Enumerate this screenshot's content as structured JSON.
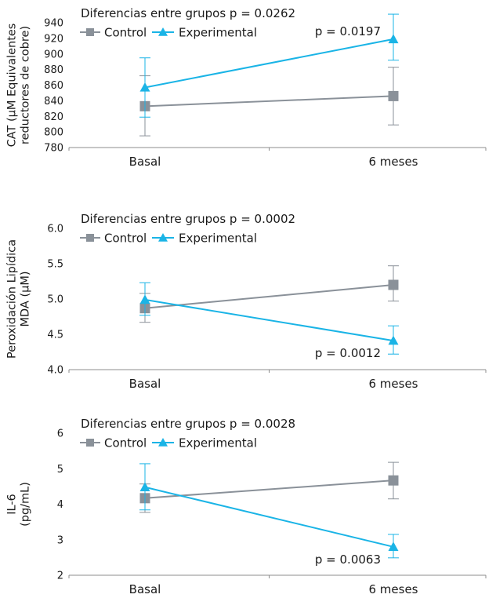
{
  "colors": {
    "control": "#8a9199",
    "experimental": "#1ab4e6",
    "axis": "#8c8c8c"
  },
  "chart_data": [
    {
      "type": "line",
      "annotation": "Diferencias entre grupos p = 0.0262",
      "ylabel_lines": [
        "CAT (µM Equivalentes",
        "reductores de cobre)"
      ],
      "categories": [
        "Basal",
        "6 meses"
      ],
      "ylim": [
        780,
        940
      ],
      "yticks": [
        "780",
        "800",
        "820",
        "840",
        "860",
        "880",
        "900",
        "920",
        "940"
      ],
      "legend": [
        "Control",
        "Experimental"
      ],
      "series": [
        {
          "name": "Control",
          "values": [
            833,
            846
          ],
          "err_low": [
            795,
            809
          ],
          "err_high": [
            872,
            883
          ]
        },
        {
          "name": "Experimental",
          "values": [
            857,
            919
          ],
          "err_low": [
            819,
            892
          ],
          "err_high": [
            895,
            951
          ]
        }
      ],
      "point_label": {
        "text": "p = 0.0197",
        "series": 1,
        "index": 1,
        "position": "left"
      }
    },
    {
      "type": "line",
      "annotation": "Diferencias entre grupos p = 0.0002",
      "ylabel_lines": [
        "Peroxidación Lipídica",
        "MDA (µM)"
      ],
      "categories": [
        "Basal",
        "6 meses"
      ],
      "ylim": [
        4.0,
        6.0
      ],
      "yticks": [
        "4.0",
        "4.5",
        "5.0",
        "5.5",
        "6.0"
      ],
      "legend": [
        "Control",
        "Experimental"
      ],
      "series": [
        {
          "name": "Control",
          "values": [
            4.87,
            5.2
          ],
          "err_low": [
            4.67,
            4.97
          ],
          "err_high": [
            5.08,
            5.47
          ]
        },
        {
          "name": "Experimental",
          "values": [
            4.99,
            4.41
          ],
          "err_low": [
            4.77,
            4.22
          ],
          "err_high": [
            5.23,
            4.62
          ]
        }
      ],
      "point_label": {
        "text": "p = 0.0012",
        "series": 1,
        "index": 1,
        "position": "below-left"
      }
    },
    {
      "type": "line",
      "annotation": "Diferencias entre grupos p = 0.0028",
      "ylabel_lines": [
        "IL-6",
        "(pg/mL)"
      ],
      "categories": [
        "Basal",
        "6 meses"
      ],
      "ylim": [
        2,
        6
      ],
      "yticks": [
        "2",
        "3",
        "4",
        "5",
        "6"
      ],
      "legend": [
        "Control",
        "Experimental"
      ],
      "series": [
        {
          "name": "Control",
          "values": [
            4.17,
            4.67
          ],
          "err_low": [
            3.77,
            4.15
          ],
          "err_high": [
            4.57,
            5.18
          ]
        },
        {
          "name": "Experimental",
          "values": [
            4.48,
            2.8
          ],
          "err_low": [
            3.84,
            2.49
          ],
          "err_high": [
            5.14,
            3.15
          ]
        }
      ],
      "point_label": {
        "text": "p = 0.0063",
        "series": 1,
        "index": 1,
        "position": "below-left"
      }
    }
  ]
}
